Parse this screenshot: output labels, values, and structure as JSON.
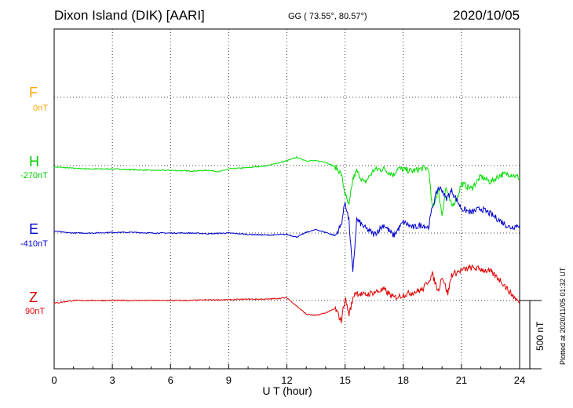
{
  "header": {
    "station": "Dixon Island (DIK)  [AARI]",
    "coords": "GG ( 73.55°,  80.57°)",
    "date": "2020/10/05"
  },
  "footer": {
    "plotted": "Plotted at 2020/11/05 01:32 UT",
    "scale_bar": "500 nT"
  },
  "chart_data": {
    "type": "line",
    "title": "",
    "xlabel": "U T (hour)",
    "ylabel": "",
    "xlim": [
      0,
      24
    ],
    "xticks": [
      0,
      3,
      6,
      9,
      12,
      15,
      18,
      21,
      24
    ],
    "grid": true,
    "scale_nT": 500,
    "series": [
      {
        "name": "F",
        "base": "0nT",
        "color": "#ffa500",
        "values": []
      },
      {
        "name": "H",
        "base": "-270nT",
        "color": "#00dd00",
        "points": [
          [
            0,
            -10
          ],
          [
            0.5,
            -15
          ],
          [
            1,
            -20
          ],
          [
            2,
            -25
          ],
          [
            3,
            -25
          ],
          [
            4,
            -30
          ],
          [
            5,
            -35
          ],
          [
            6,
            -35
          ],
          [
            7,
            -40
          ],
          [
            8,
            -35
          ],
          [
            8.5,
            -45
          ],
          [
            9,
            -25
          ],
          [
            10,
            -15
          ],
          [
            11,
            0
          ],
          [
            12,
            35
          ],
          [
            12.5,
            60
          ],
          [
            13,
            35
          ],
          [
            13.5,
            35
          ],
          [
            14,
            25
          ],
          [
            14.5,
            -10
          ],
          [
            14.8,
            -60
          ],
          [
            15,
            -210
          ],
          [
            15.2,
            -300
          ],
          [
            15.4,
            -100
          ],
          [
            15.6,
            -40
          ],
          [
            16,
            -130
          ],
          [
            16.5,
            -30
          ],
          [
            17,
            -25
          ],
          [
            17.5,
            -70
          ],
          [
            17.7,
            -20
          ],
          [
            18,
            -30
          ],
          [
            18.5,
            -40
          ],
          [
            19,
            -20
          ],
          [
            19.3,
            -20
          ],
          [
            19.5,
            -320
          ],
          [
            19.8,
            -180
          ],
          [
            20,
            -360
          ],
          [
            20.2,
            -160
          ],
          [
            20.5,
            -300
          ],
          [
            20.8,
            -230
          ],
          [
            21,
            -130
          ],
          [
            21.5,
            -170
          ],
          [
            22,
            -80
          ],
          [
            22.5,
            -120
          ],
          [
            23,
            -70
          ],
          [
            23.5,
            -60
          ],
          [
            24,
            -90
          ]
        ]
      },
      {
        "name": "E",
        "base": "-410nT",
        "color": "#0000cc",
        "points": [
          [
            0,
            15
          ],
          [
            0.5,
            5
          ],
          [
            1,
            0
          ],
          [
            2,
            0
          ],
          [
            3,
            5
          ],
          [
            4,
            5
          ],
          [
            5,
            0
          ],
          [
            6,
            0
          ],
          [
            7,
            0
          ],
          [
            8,
            -5
          ],
          [
            9,
            0
          ],
          [
            10,
            -10
          ],
          [
            11,
            -15
          ],
          [
            12,
            -10
          ],
          [
            12.5,
            -30
          ],
          [
            13,
            5
          ],
          [
            13.5,
            25
          ],
          [
            14,
            5
          ],
          [
            14.5,
            -20
          ],
          [
            14.8,
            60
          ],
          [
            15,
            230
          ],
          [
            15.2,
            90
          ],
          [
            15.4,
            -300
          ],
          [
            15.6,
            100
          ],
          [
            16,
            40
          ],
          [
            16.5,
            -10
          ],
          [
            17,
            60
          ],
          [
            17.5,
            -20
          ],
          [
            18,
            80
          ],
          [
            18.5,
            40
          ],
          [
            19,
            60
          ],
          [
            19.3,
            40
          ],
          [
            19.5,
            190
          ],
          [
            19.8,
            330
          ],
          [
            20,
            320
          ],
          [
            20.2,
            250
          ],
          [
            20.5,
            310
          ],
          [
            21,
            180
          ],
          [
            21.5,
            150
          ],
          [
            22,
            180
          ],
          [
            22.5,
            140
          ],
          [
            23,
            90
          ],
          [
            23.5,
            40
          ],
          [
            24,
            60
          ]
        ]
      },
      {
        "name": "Z",
        "base": "90nT",
        "color": "#dd0000",
        "points": [
          [
            0,
            -20
          ],
          [
            1,
            0
          ],
          [
            2,
            0
          ],
          [
            3,
            0
          ],
          [
            4,
            0
          ],
          [
            5,
            0
          ],
          [
            6,
            0
          ],
          [
            7,
            0
          ],
          [
            8,
            5
          ],
          [
            9,
            5
          ],
          [
            10,
            10
          ],
          [
            11,
            10
          ],
          [
            12,
            20
          ],
          [
            12.5,
            -40
          ],
          [
            13,
            -100
          ],
          [
            13.5,
            -110
          ],
          [
            14,
            -90
          ],
          [
            14.5,
            -60
          ],
          [
            14.8,
            -150
          ],
          [
            15,
            20
          ],
          [
            15.2,
            -100
          ],
          [
            15.5,
            60
          ],
          [
            16,
            40
          ],
          [
            16.5,
            60
          ],
          [
            17,
            80
          ],
          [
            17.5,
            20
          ],
          [
            18,
            40
          ],
          [
            18.5,
            60
          ],
          [
            19,
            80
          ],
          [
            19.5,
            190
          ],
          [
            19.8,
            70
          ],
          [
            20,
            180
          ],
          [
            20.3,
            50
          ],
          [
            20.5,
            190
          ],
          [
            21,
            220
          ],
          [
            21.5,
            240
          ],
          [
            22,
            230
          ],
          [
            22.5,
            210
          ],
          [
            23,
            150
          ],
          [
            23.5,
            60
          ],
          [
            24,
            -20
          ]
        ]
      }
    ]
  }
}
